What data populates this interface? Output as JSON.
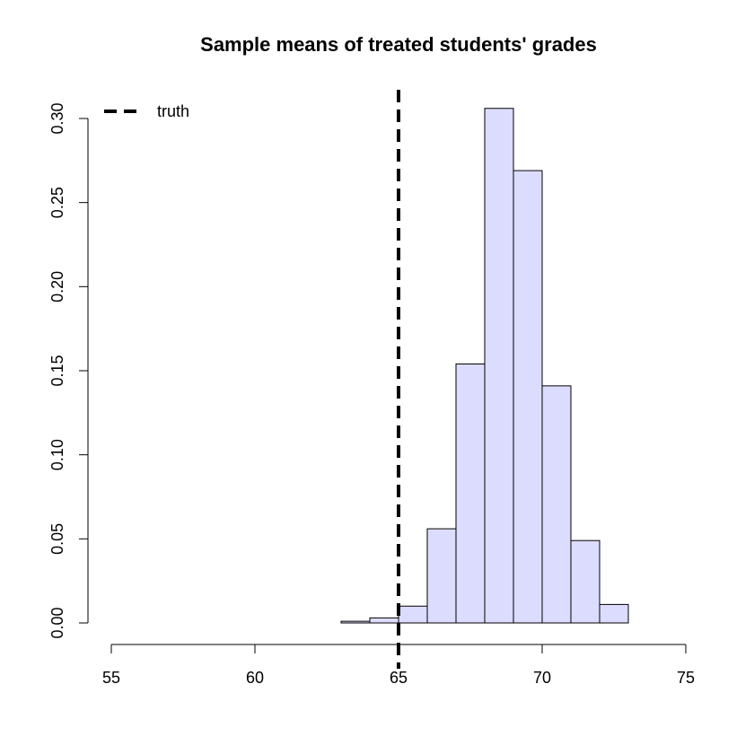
{
  "chart_data": {
    "type": "histogram",
    "title": "Sample means of treated students' grades",
    "xlabel": "",
    "ylabel": "",
    "xlim": [
      55,
      75
    ],
    "ylim": [
      0,
      0.3
    ],
    "x_ticks": [
      55,
      60,
      65,
      70,
      75
    ],
    "y_ticks": [
      0.0,
      0.05,
      0.1,
      0.15,
      0.2,
      0.25,
      0.3
    ],
    "x_tick_labels": [
      "55",
      "60",
      "65",
      "70",
      "75"
    ],
    "y_tick_labels": [
      "0.00",
      "0.05",
      "0.10",
      "0.15",
      "0.20",
      "0.25",
      "0.30"
    ],
    "bins": [
      {
        "x0": 63,
        "x1": 64,
        "density": 0.001
      },
      {
        "x0": 64,
        "x1": 65,
        "density": 0.003
      },
      {
        "x0": 65,
        "x1": 66,
        "density": 0.01
      },
      {
        "x0": 66,
        "x1": 67,
        "density": 0.056
      },
      {
        "x0": 67,
        "x1": 68,
        "density": 0.154
      },
      {
        "x0": 68,
        "x1": 69,
        "density": 0.306
      },
      {
        "x0": 69,
        "x1": 70,
        "density": 0.269
      },
      {
        "x0": 70,
        "x1": 71,
        "density": 0.141
      },
      {
        "x0": 71,
        "x1": 72,
        "density": 0.049
      },
      {
        "x0": 72,
        "x1": 73,
        "density": 0.011
      }
    ],
    "bar_fill": "#dcdcff",
    "reference_line": {
      "x": 65,
      "label": "truth",
      "style": "dashed",
      "color": "#000000"
    },
    "legend": {
      "position": "top-left",
      "entries": [
        "truth"
      ]
    },
    "grid": false
  }
}
